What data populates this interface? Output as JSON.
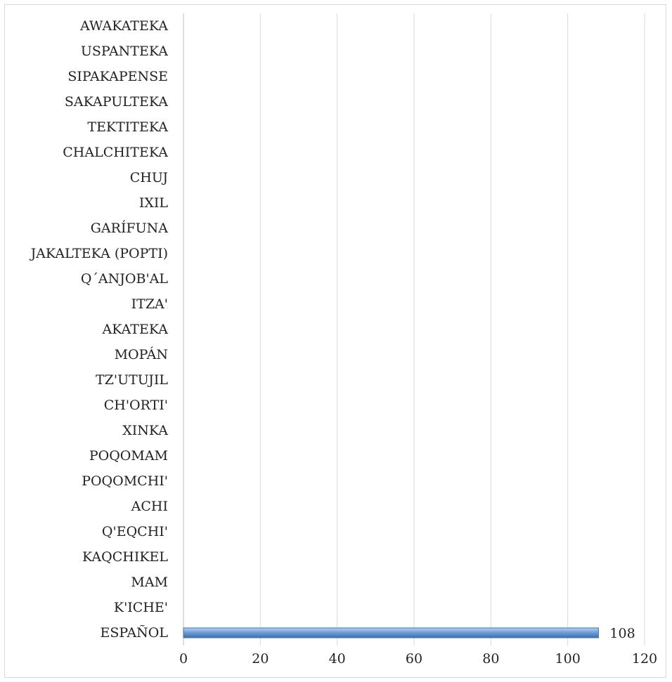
{
  "chart_data": {
    "type": "bar",
    "orientation": "horizontal",
    "categories": [
      "AWAKATEKA",
      "USPANTEKA",
      "SIPAKAPENSE",
      "SAKAPULTEKA",
      "TEKTITEKA",
      "CHALCHITEKA",
      "CHUJ",
      "IXIL",
      "GARÍFUNA",
      "JAKALTEKA (POPTI)",
      "Q´ANJOB'AL",
      "ITZA'",
      "AKATEKA",
      "MOPÁN",
      "TZ'UTUJIL",
      "CH'ORTI'",
      "XINKA",
      "POQOMAM",
      "POQOMCHI'",
      "ACHI",
      "Q'EQCHI'",
      "KAQCHIKEL",
      "MAM",
      "K'ICHE'",
      "ESPAÑOL"
    ],
    "values": [
      0,
      0,
      0,
      0,
      0,
      0,
      0,
      0,
      0,
      0,
      0,
      0,
      0,
      0,
      0,
      0,
      0,
      0,
      0,
      0,
      0,
      0,
      0,
      0,
      108
    ],
    "data_labels": [
      null,
      null,
      null,
      null,
      null,
      null,
      null,
      null,
      null,
      null,
      null,
      null,
      null,
      null,
      null,
      null,
      null,
      null,
      null,
      null,
      null,
      null,
      null,
      null,
      "108"
    ],
    "x_ticks": [
      "0",
      "20",
      "40",
      "60",
      "80",
      "100",
      "120"
    ],
    "xlim": [
      0,
      120
    ],
    "grid": "vertical",
    "title": "",
    "xlabel": "",
    "ylabel": "",
    "colors": {
      "bar": "#6f9fd8",
      "bar_edge": "#3f6fae",
      "grid": "#d9d9d9",
      "axis": "#bfbfbf"
    }
  }
}
